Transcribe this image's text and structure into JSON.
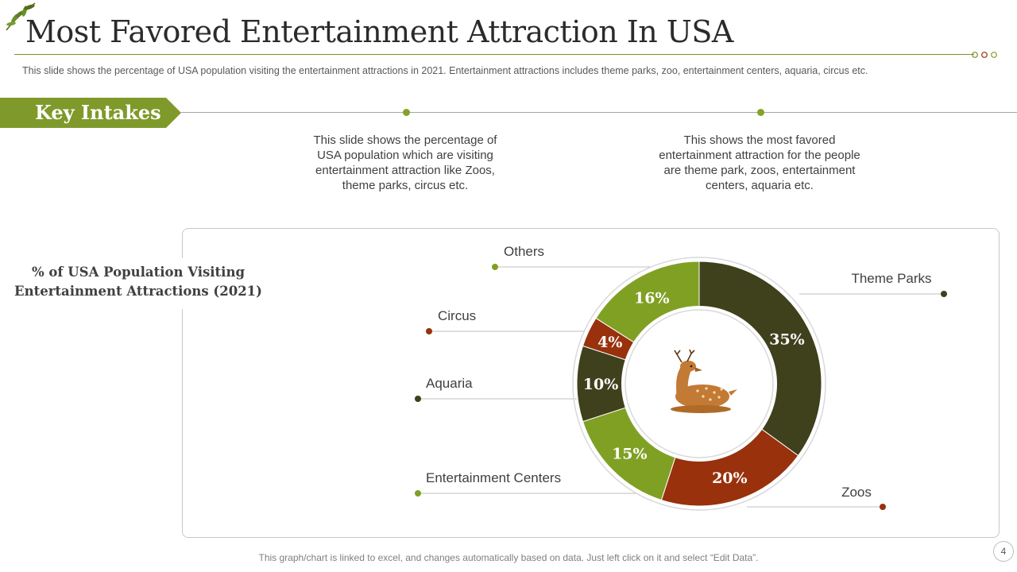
{
  "header": {
    "title": "Most Favored Entertainment Attraction In USA",
    "subtitle": "This slide shows the percentage of USA population visiting the entertainment attractions in 2021. Entertainment attractions includes theme parks, zoo, entertainment centers, aquaria, circus etc."
  },
  "key_intakes": {
    "heading": "Key Intakes",
    "items": [
      "This slide shows the percentage of USA population which are visiting entertainment attraction like Zoos, theme parks, circus etc.",
      "This shows the most favored entertainment attraction for the people are theme park, zoos, entertainment centers, aquaria etc."
    ]
  },
  "chart_data": {
    "type": "pie",
    "title": "% of USA Population Visiting Entertainment Attractions (2021)",
    "categories": [
      "Theme Parks",
      "Zoos",
      "Entertainment Centers",
      "Aquaria",
      "Circus",
      "Others"
    ],
    "values": [
      35,
      20,
      15,
      10,
      4,
      16
    ],
    "value_labels": [
      "35%",
      "20%",
      "15%",
      "10%",
      "4%",
      "16%"
    ],
    "colors": [
      "#3f401c",
      "#98310c",
      "#80a024",
      "#3f401c",
      "#98310c",
      "#80a024"
    ],
    "donut": true,
    "center_icon": "deer-icon"
  },
  "footer": {
    "note": "This graph/chart is linked to excel, and changes automatically based on data. Just left click on it and select “Edit Data”.",
    "page_number": "4"
  },
  "colors": {
    "accent_green": "#82a326",
    "dark_olive": "#3f401c",
    "rust": "#98310c"
  }
}
